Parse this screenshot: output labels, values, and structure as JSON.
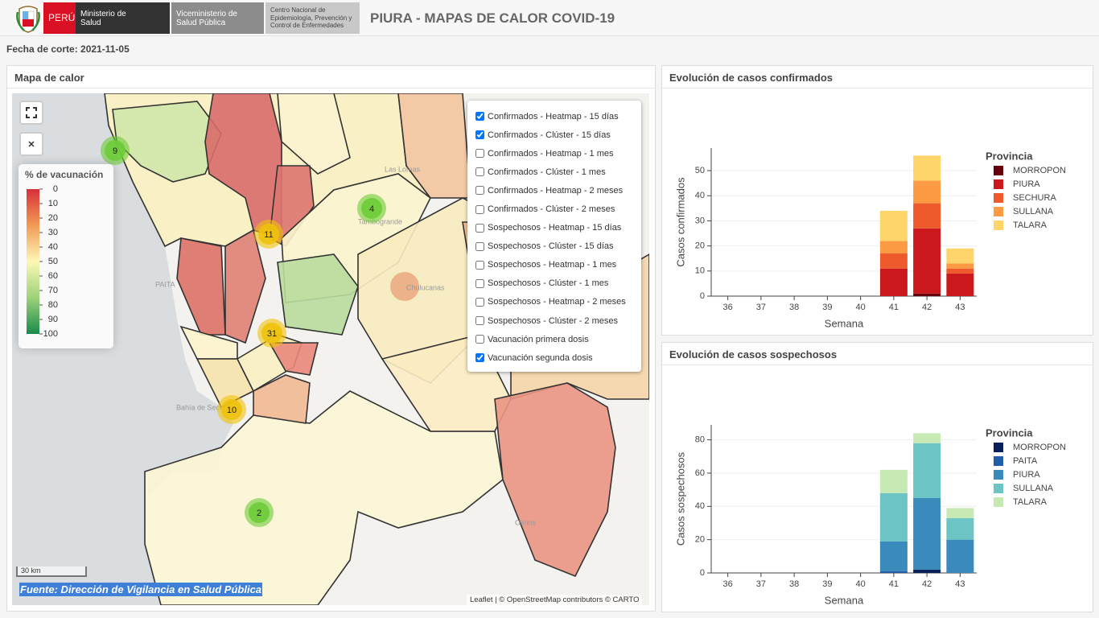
{
  "header": {
    "country": "PERÚ",
    "ministry": "Ministerio de Salud",
    "vice": "Viceministerio de Salud Pública",
    "center": "Centro Nacional de Epidemiología, Prevención y Control de Enfermedades",
    "title": "PIURA - MAPAS DE CALOR COVID-19"
  },
  "cutoff": "Fecha de corte: 2021-11-05",
  "map": {
    "title": "Mapa de calor",
    "legend": {
      "title": "% de vacunación",
      "ticks": [
        0,
        10,
        20,
        30,
        40,
        50,
        60,
        70,
        80,
        90,
        100
      ]
    },
    "layers": [
      {
        "label": "Confirmados - Heatmap - 15 días",
        "checked": true
      },
      {
        "label": "Confirmados - Clúster - 15 días",
        "checked": true
      },
      {
        "label": "Confirmados - Heatmap - 1 mes",
        "checked": false
      },
      {
        "label": "Confirmados - Clúster - 1 mes",
        "checked": false
      },
      {
        "label": "Confirmados - Heatmap - 2 meses",
        "checked": false
      },
      {
        "label": "Confirmados - Clúster - 2 meses",
        "checked": false
      },
      {
        "label": "Sospechosos - Heatmap - 15 días",
        "checked": false
      },
      {
        "label": "Sospechosos - Clúster - 15 días",
        "checked": false
      },
      {
        "label": "Sospechosos - Heatmap - 1 mes",
        "checked": false
      },
      {
        "label": "Sospechosos - Clúster - 1 mes",
        "checked": false
      },
      {
        "label": "Sospechosos - Heatmap - 2 meses",
        "checked": false
      },
      {
        "label": "Sospechosos - Clúster - 2 meses",
        "checked": false
      },
      {
        "label": "Vacunación primera dosis",
        "checked": false
      },
      {
        "label": "Vacunación segunda dosis",
        "checked": true
      }
    ],
    "clusters": [
      9,
      4,
      11,
      31,
      10,
      2
    ],
    "places": [
      "Las Lomas",
      "Tambogrande",
      "Chulucanas",
      "PAITA",
      "Bahía de Sechura",
      "Olmos"
    ],
    "scale": "30 km",
    "source": "Fuente: Dirección de Vigilancia en Salud Pública",
    "attribution": "Leaflet | © OpenStreetMap contributors © CARTO"
  },
  "chart_data": [
    {
      "type": "bar",
      "stacked": true,
      "title": "Evolución de casos confirmados",
      "x_label": "Semana",
      "y_label": "Casos confirmados",
      "legend_title": "Provincia",
      "categories": [
        36,
        37,
        38,
        39,
        40,
        41,
        42,
        43
      ],
      "ylim": [
        0,
        59
      ],
      "yticks": [
        0,
        10,
        20,
        30,
        40,
        50
      ],
      "grid": true,
      "series": [
        {
          "name": "MORROPON",
          "color": "#67000d",
          "values": [
            0,
            0,
            0,
            0,
            0,
            0,
            1,
            0
          ]
        },
        {
          "name": "PIURA",
          "color": "#cb181d",
          "values": [
            0,
            0,
            0,
            0,
            0,
            11,
            26,
            9
          ]
        },
        {
          "name": "SECHURA",
          "color": "#ef5a2c",
          "values": [
            0,
            0,
            0,
            0,
            0,
            6,
            10,
            2
          ]
        },
        {
          "name": "SULLANA",
          "color": "#fd9a44",
          "values": [
            0,
            0,
            0,
            0,
            0,
            5,
            9,
            2
          ]
        },
        {
          "name": "TALARA",
          "color": "#fdd56b",
          "values": [
            0,
            0,
            0,
            0,
            0,
            12,
            10,
            6
          ]
        }
      ]
    },
    {
      "type": "bar",
      "stacked": true,
      "title": "Evolución de casos sospechosos",
      "x_label": "Semana",
      "y_label": "Casos sospechosos",
      "legend_title": "Provincia",
      "categories": [
        36,
        37,
        38,
        39,
        40,
        41,
        42,
        43
      ],
      "ylim": [
        0,
        89
      ],
      "yticks": [
        0,
        20,
        40,
        60,
        80
      ],
      "grid": true,
      "series": [
        {
          "name": "MORROPON",
          "color": "#08215a",
          "values": [
            0,
            0,
            0,
            0,
            0,
            0,
            2,
            0
          ]
        },
        {
          "name": "PAITA",
          "color": "#225ea8",
          "values": [
            0,
            0,
            0,
            0,
            0,
            1,
            0,
            0
          ]
        },
        {
          "name": "PIURA",
          "color": "#3a8bbb",
          "values": [
            0,
            0,
            0,
            0,
            0,
            18,
            43,
            20
          ]
        },
        {
          "name": "SULLANA",
          "color": "#6cc4c4",
          "values": [
            0,
            0,
            0,
            0,
            0,
            29,
            33,
            13
          ]
        },
        {
          "name": "TALARA",
          "color": "#c7e9b4",
          "values": [
            0,
            0,
            0,
            0,
            0,
            14,
            6,
            6
          ]
        }
      ]
    }
  ]
}
